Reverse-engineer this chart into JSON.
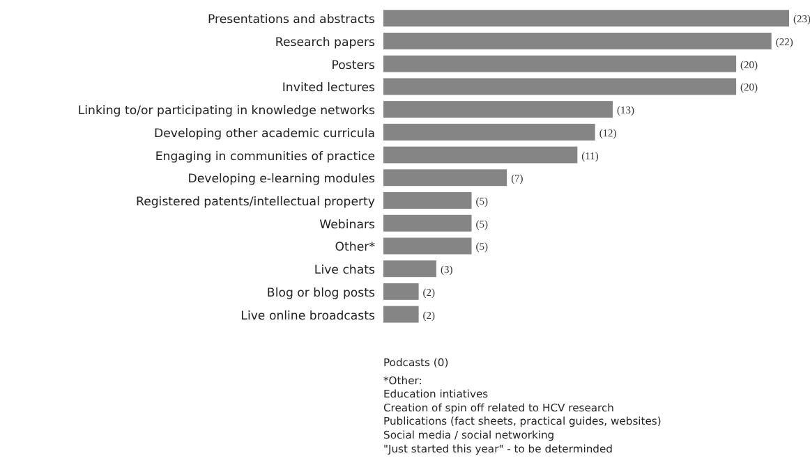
{
  "chart_data": {
    "type": "bar",
    "orientation": "horizontal",
    "categories": [
      "Presentations and abstracts",
      "Research papers",
      "Posters",
      "Invited lectures",
      "Linking to/or participating in knowledge networks",
      "Developing other academic curricula",
      "Engaging in communities of practice",
      "Developing e-learning modules",
      "Registered patents/intellectual property",
      "Webinars",
      "Other*",
      "Live chats",
      "Blog or blog posts",
      "Live online broadcasts"
    ],
    "values": [
      23,
      22,
      20,
      20,
      13,
      12,
      11,
      7,
      5,
      5,
      5,
      3,
      2,
      2
    ],
    "value_labels": [
      "(23)",
      "(22)",
      "(20)",
      "(20)",
      "(13)",
      "(12)",
      "(11)",
      "(7)",
      "(5)",
      "(5)",
      "(5)",
      "(3)",
      "(2)",
      "(2)"
    ],
    "color": "#858585",
    "xlim": [
      0,
      23
    ],
    "tick_labels": "y",
    "annotations": [
      "Podcasts (0)",
      "*Other:",
      "Education intiatives",
      "Creation of spin off related to HCV research",
      "Publications (fact sheets, practical guides, websites)",
      "Social media / social networking",
      "\"Just started this year\" - to be determinded"
    ]
  }
}
